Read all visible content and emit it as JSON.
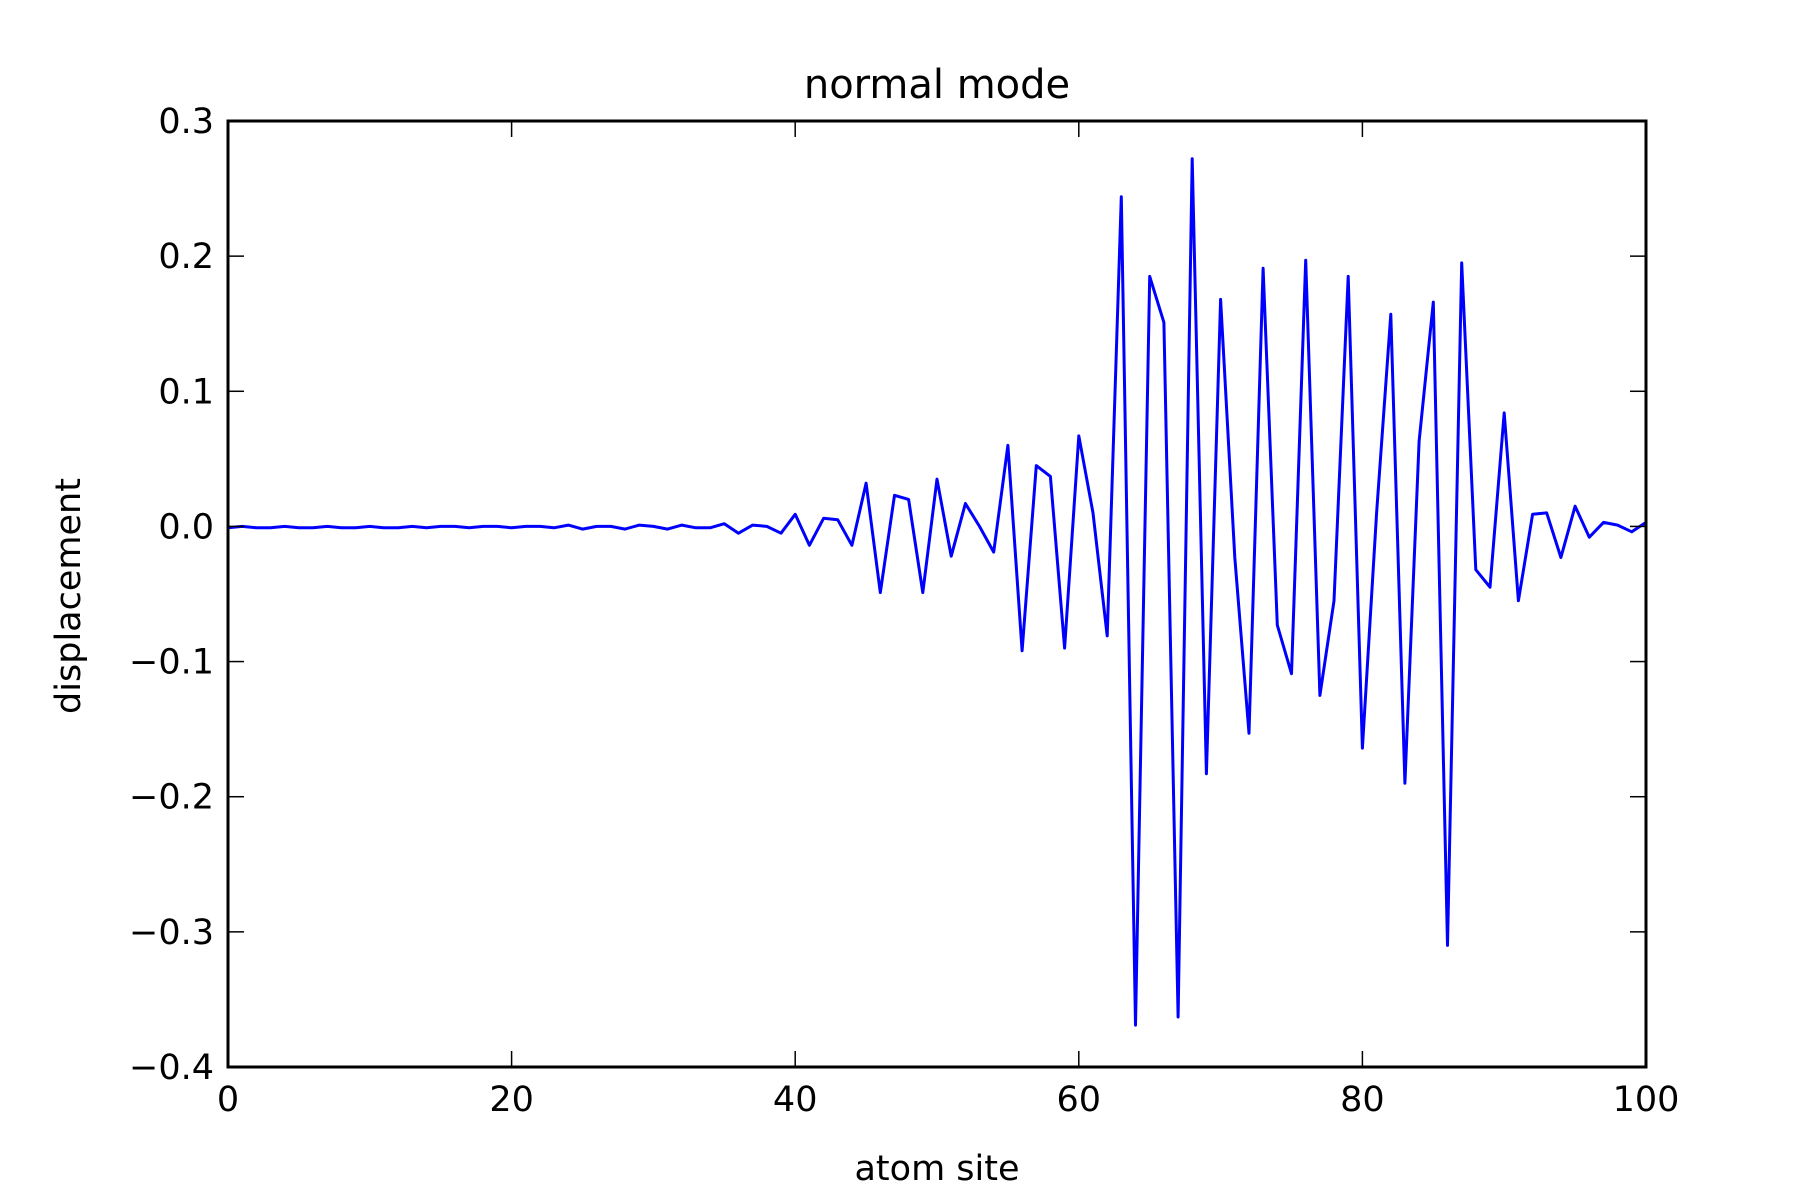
{
  "chart_data": {
    "type": "line",
    "title": "normal mode",
    "xlabel": "atom site",
    "ylabel": "displacement",
    "xlim": [
      0,
      100
    ],
    "ylim": [
      -0.4,
      0.3
    ],
    "xticks": [
      0,
      20,
      40,
      60,
      80,
      100
    ],
    "xtick_labels": [
      "0",
      "20",
      "40",
      "60",
      "80",
      "100"
    ],
    "yticks": [
      -0.4,
      -0.3,
      -0.2,
      -0.1,
      0.0,
      0.1,
      0.2,
      0.3
    ],
    "ytick_labels": [
      "−0.4",
      "−0.3",
      "−0.2",
      "−0.1",
      "0.0",
      "0.1",
      "0.2",
      "0.3"
    ],
    "grid": false,
    "legend": "none",
    "series": [
      {
        "color": "#0000ff",
        "x": [
          0,
          1,
          2,
          3,
          4,
          5,
          6,
          7,
          8,
          9,
          10,
          11,
          12,
          13,
          14,
          15,
          16,
          17,
          18,
          19,
          20,
          21,
          22,
          23,
          24,
          25,
          26,
          27,
          28,
          29,
          30,
          31,
          32,
          33,
          34,
          35,
          36,
          37,
          38,
          39,
          40,
          41,
          42,
          43,
          44,
          45,
          46,
          47,
          48,
          49,
          50,
          51,
          52,
          53,
          54,
          55,
          56,
          57,
          58,
          59,
          60,
          61,
          62,
          63,
          64,
          65,
          66,
          67,
          68,
          69,
          70,
          71,
          72,
          73,
          74,
          75,
          76,
          77,
          78,
          79,
          80,
          81,
          82,
          83,
          84,
          85,
          86,
          87,
          88,
          89,
          90,
          91,
          92,
          93,
          94,
          95,
          96,
          97,
          98,
          99,
          100
        ],
        "y": [
          -0.001,
          0.0,
          -0.001,
          -0.001,
          0.0,
          -0.001,
          -0.001,
          0.0,
          -0.001,
          -0.001,
          0.0,
          -0.001,
          -0.001,
          0.0,
          -0.001,
          0.0,
          0.0,
          -0.001,
          0.0,
          0.0,
          -0.001,
          0.0,
          0.0,
          -0.001,
          0.001,
          -0.002,
          0.0,
          0.0,
          -0.002,
          0.001,
          0.0,
          -0.002,
          0.001,
          -0.001,
          -0.001,
          0.002,
          -0.005,
          0.001,
          0.0,
          -0.005,
          0.009,
          -0.014,
          0.006,
          0.005,
          -0.014,
          0.032,
          -0.049,
          0.023,
          0.02,
          -0.049,
          0.035,
          -0.022,
          0.017,
          0.0,
          -0.019,
          0.06,
          -0.092,
          0.045,
          0.037,
          -0.09,
          0.067,
          0.01,
          -0.081,
          0.244,
          -0.369,
          0.185,
          0.151,
          -0.363,
          0.272,
          -0.183,
          0.168,
          -0.023,
          -0.153,
          0.191,
          -0.073,
          -0.109,
          0.197,
          -0.125,
          -0.055,
          0.185,
          -0.164,
          0.01,
          0.157,
          -0.19,
          0.063,
          0.166,
          -0.31,
          0.195,
          -0.032,
          -0.045,
          0.084,
          -0.055,
          0.009,
          0.01,
          -0.023,
          0.015,
          -0.008,
          0.003,
          0.001,
          -0.004,
          0.003
        ]
      }
    ]
  }
}
